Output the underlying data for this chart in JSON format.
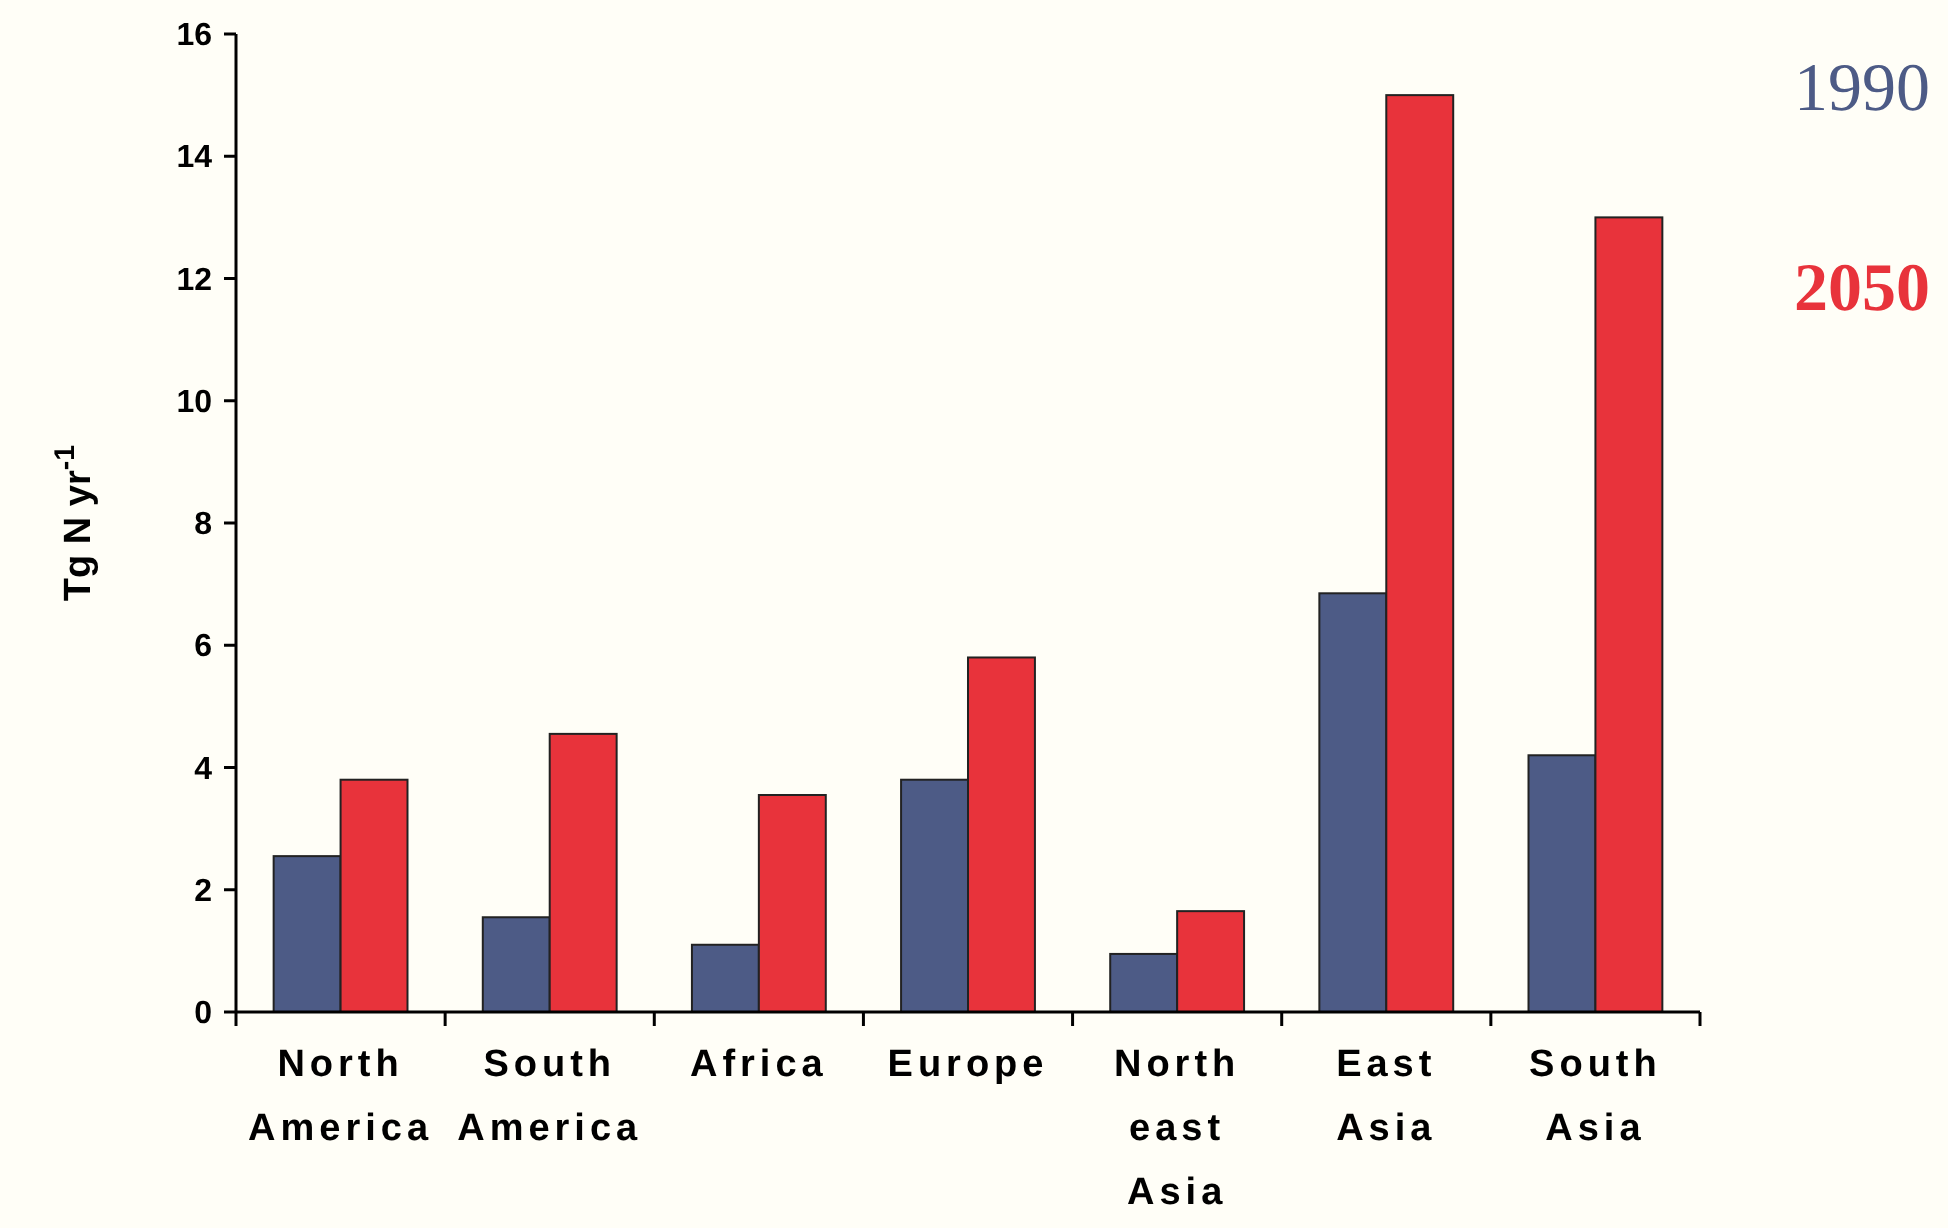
{
  "chart_data": {
    "type": "bar",
    "ylabel": "Tg N yr$^{-1}$",
    "categories": [
      "North America",
      "South America",
      "Africa",
      "Europe",
      "North east Asia",
      "East Asia",
      "South Asia"
    ],
    "series": [
      {
        "name": "1990",
        "color": "#4d5b86",
        "values": [
          2.55,
          1.55,
          1.1,
          3.8,
          0.95,
          6.85,
          4.2
        ]
      },
      {
        "name": "2050",
        "color": "#e8333b",
        "values": [
          3.8,
          4.55,
          3.55,
          5.8,
          1.65,
          15,
          13
        ]
      }
    ],
    "ylim": [
      0,
      16
    ],
    "yticks": [
      0,
      2,
      4,
      6,
      8,
      10,
      12,
      14,
      16
    ],
    "grid": false,
    "legend": "top right"
  }
}
